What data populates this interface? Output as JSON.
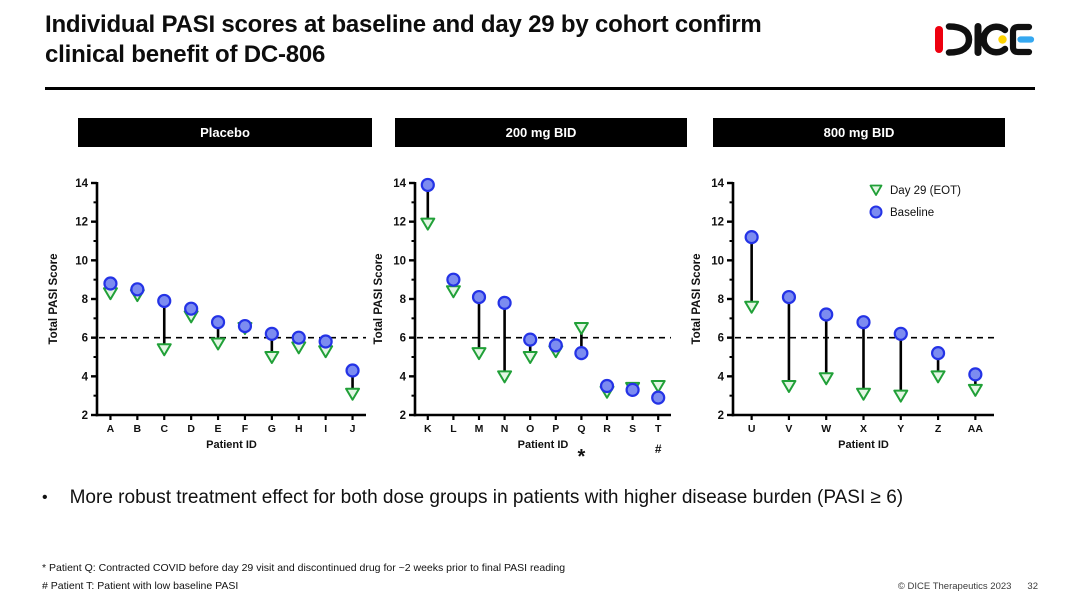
{
  "header": {
    "title_line1": "Individual PASI scores at baseline and day 29 by cohort confirm",
    "title_line2": "clinical benefit of DC-806",
    "logo_name": "DICE"
  },
  "bullet": {
    "marker": "•",
    "text": "More robust treatment effect for both dose groups in patients with higher disease burden (PASI ≥ 6)"
  },
  "footnotes": [
    "* Patient Q: Contracted COVID before day 29 visit and discontinued drug for ~2 weeks prior to final PASI reading",
    "# Patient T: Patient with low baseline PASI"
  ],
  "footer": {
    "copyright": "© DICE Therapeutics 2023",
    "page": "32"
  },
  "colors": {
    "baseline_fill": "#7c8cf0",
    "baseline_stroke": "#2433e6",
    "day29_fill": "#e4f6e4",
    "day29_stroke": "#21a038",
    "connector": "#000000",
    "reference_line": "#000000",
    "axis": "#000000",
    "header_bar_bg": "#000000",
    "header_bar_text": "#ffffff",
    "logo_red": "#ee000f",
    "logo_yellow": "#ffd400",
    "logo_blue": "#35a8f0",
    "logo_black": "#101010"
  },
  "chart_data": [
    {
      "type": "scatter",
      "title": "Placebo",
      "xlabel": "Patient ID",
      "ylabel": "Total PASI Score",
      "ylim": [
        2,
        14
      ],
      "ytick_major": 2,
      "ytick_minor": 1,
      "reference_line_y": 6,
      "grid": false,
      "show_legend": false,
      "categories": [
        "A",
        "B",
        "C",
        "D",
        "E",
        "F",
        "G",
        "H",
        "I",
        "J"
      ],
      "footmarks": {},
      "series": [
        {
          "name": "Day 29 (EOT)",
          "marker": "triangle-down",
          "values": [
            8.3,
            8.2,
            5.4,
            7.1,
            5.7,
            6.5,
            5.0,
            5.5,
            5.3,
            3.1
          ]
        },
        {
          "name": "Baseline",
          "marker": "circle",
          "values": [
            8.8,
            8.5,
            7.9,
            7.5,
            6.8,
            6.6,
            6.2,
            6.0,
            5.8,
            4.3
          ]
        }
      ]
    },
    {
      "type": "scatter",
      "title": "200 mg BID",
      "xlabel": "Patient ID",
      "ylabel": "Total PASI Score",
      "ylim": [
        2,
        14
      ],
      "ytick_major": 2,
      "ytick_minor": 1,
      "reference_line_y": 6,
      "grid": false,
      "show_legend": false,
      "categories": [
        "K",
        "L",
        "M",
        "N",
        "O",
        "P",
        "Q",
        "R",
        "S",
        "T"
      ],
      "footmarks": {
        "Q": "*",
        "T": "#"
      },
      "series": [
        {
          "name": "Day 29 (EOT)",
          "marker": "triangle-down",
          "values": [
            11.9,
            8.4,
            5.2,
            4.0,
            5.0,
            5.3,
            6.5,
            3.2,
            3.4,
            3.5
          ]
        },
        {
          "name": "Baseline",
          "marker": "circle",
          "values": [
            13.9,
            9.0,
            8.1,
            7.8,
            5.9,
            5.6,
            5.2,
            3.5,
            3.3,
            2.9
          ]
        }
      ]
    },
    {
      "type": "scatter",
      "title": "800 mg BID",
      "xlabel": "Patient ID",
      "ylabel": "Total PASI Score",
      "ylim": [
        2,
        14
      ],
      "ytick_major": 2,
      "ytick_minor": 1,
      "reference_line_y": 6,
      "grid": false,
      "show_legend": true,
      "legend_labels": [
        "Day 29 (EOT)",
        "Baseline"
      ],
      "categories": [
        "U",
        "V",
        "W",
        "X",
        "Y",
        "Z",
        "AA"
      ],
      "footmarks": {},
      "series": [
        {
          "name": "Day 29 (EOT)",
          "marker": "triangle-down",
          "values": [
            7.6,
            3.5,
            3.9,
            3.1,
            3.0,
            4.0,
            3.3
          ]
        },
        {
          "name": "Baseline",
          "marker": "circle",
          "values": [
            11.2,
            8.1,
            7.2,
            6.8,
            6.2,
            5.2,
            4.1
          ]
        }
      ]
    }
  ]
}
